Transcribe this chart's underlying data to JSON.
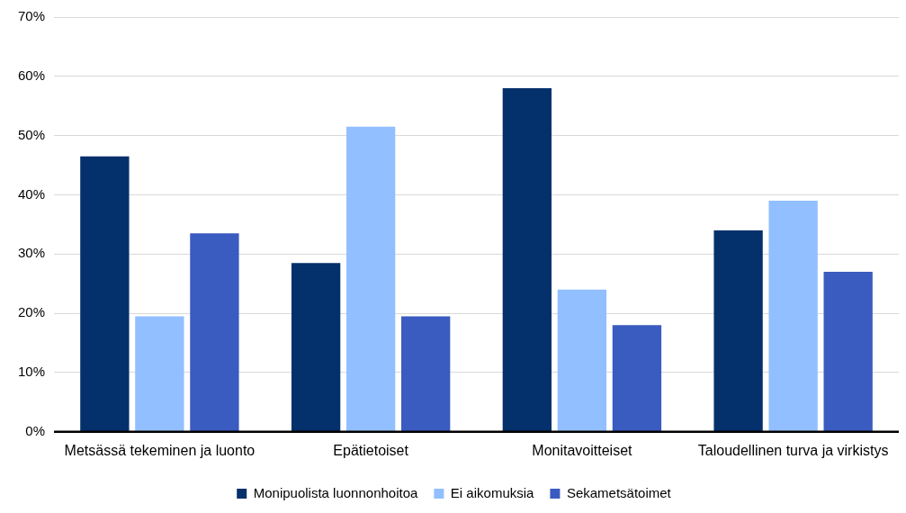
{
  "chart_data": {
    "type": "bar",
    "categories": [
      "Metsässä tekeminen ja luonto",
      "Epätietoiset",
      "Monitavoitteiset",
      "Taloudellinen turva ja virkistys"
    ],
    "series": [
      {
        "name": "Monipuolista luonnonhoitoa",
        "color": "#04306b",
        "values": [
          46.5,
          28.5,
          58,
          34
        ]
      },
      {
        "name": "Ei aikomuksia",
        "color": "#92bfff",
        "values": [
          19.5,
          51.5,
          24,
          39
        ]
      },
      {
        "name": "Sekametsätoimet",
        "color": "#3a5bbf",
        "values": [
          33.5,
          19.5,
          18,
          27
        ]
      }
    ],
    "ylim": [
      0,
      70
    ],
    "yticks": [
      {
        "value": 0,
        "label": "0%"
      },
      {
        "value": 10,
        "label": "10%"
      },
      {
        "value": 20,
        "label": "20%"
      },
      {
        "value": 30,
        "label": "30%"
      },
      {
        "value": 40,
        "label": "40%"
      },
      {
        "value": 50,
        "label": "50%"
      },
      {
        "value": 60,
        "label": "60%"
      },
      {
        "value": 70,
        "label": "70%"
      }
    ],
    "grid": "y",
    "legend": "bottom"
  }
}
